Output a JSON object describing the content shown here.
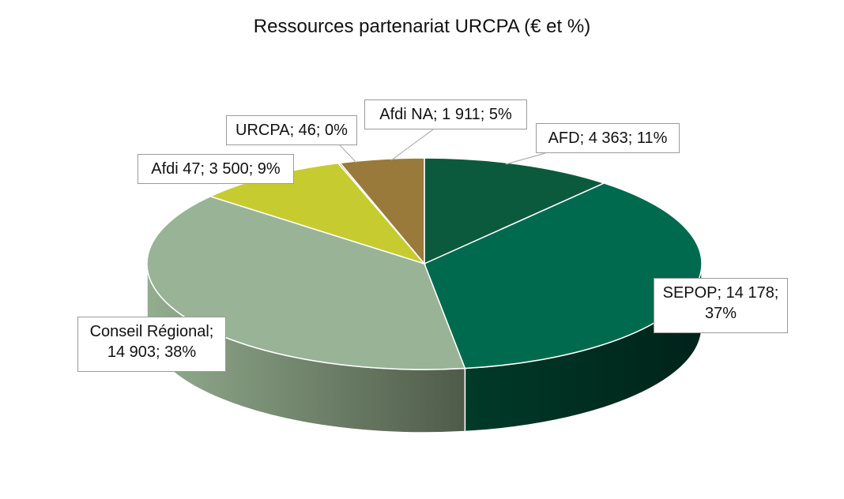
{
  "chart_data": {
    "type": "pie",
    "style": "3d",
    "title": "Ressources partenariat URCPA (€ et %)",
    "slices": [
      {
        "name": "AFD",
        "value": 4363,
        "percent": 11,
        "color": "#0b5a3e",
        "label_lines": [
          "AFD; 4 363; 11%"
        ]
      },
      {
        "name": "SEPOP",
        "value": 14178,
        "percent": 37,
        "color": "#006a4e",
        "label_lines": [
          "SEPOP; 14 178;",
          "37%"
        ]
      },
      {
        "name": "Conseil Régional",
        "value": 14903,
        "percent": 38,
        "color": "#98b396",
        "label_lines": [
          "Conseil Régional;",
          "14 903; 38%"
        ]
      },
      {
        "name": "Afdi 47",
        "value": 3500,
        "percent": 9,
        "color": "#c6cc2f",
        "label_lines": [
          "Afdi 47; 3 500; 9%"
        ]
      },
      {
        "name": "URCPA",
        "value": 46,
        "percent": 0,
        "color": "#8c8a5a",
        "label_lines": [
          "URCPA; 46; 0%"
        ]
      },
      {
        "name": "Afdi NA",
        "value": 1911,
        "percent": 5,
        "color": "#9a7a3b",
        "label_lines": [
          "Afdi NA; 1 911; 5%"
        ]
      }
    ]
  }
}
